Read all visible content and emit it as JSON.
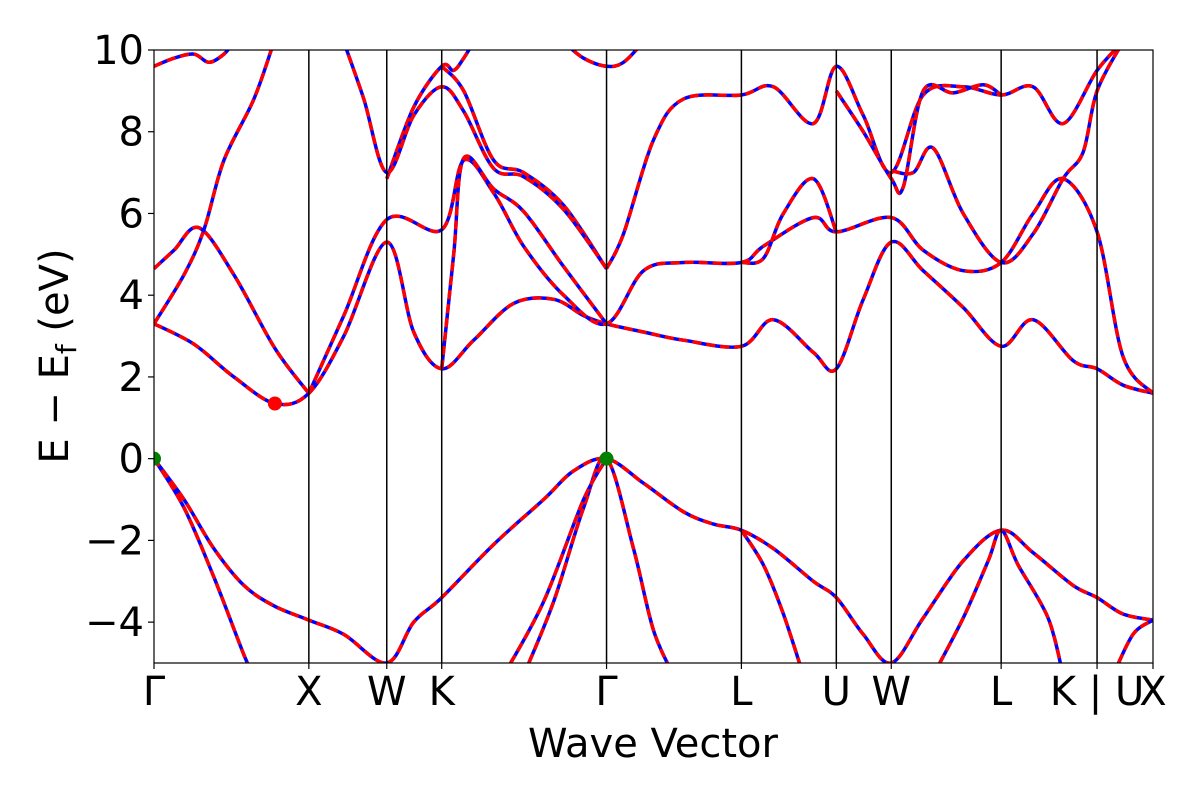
{
  "chart_data": {
    "type": "line",
    "title": "",
    "xlabel": "Wave Vector",
    "ylabel": "E − E_f (eV)",
    "ylabel_main": "E − E",
    "ylabel_sub": "f",
    "ylabel_tail": " (eV)",
    "ylim": [
      -5,
      10
    ],
    "xlim": [
      0,
      1
    ],
    "yticks": [
      -4,
      -2,
      0,
      2,
      4,
      6,
      8,
      10
    ],
    "ytick_labels": [
      "−4",
      "−2",
      "0",
      "2",
      "4",
      "6",
      "8",
      "10"
    ],
    "kpoints": [
      {
        "label": "Γ",
        "x": 0.0
      },
      {
        "label": "X",
        "x": 0.155
      },
      {
        "label": "W",
        "x": 0.233
      },
      {
        "label": "K",
        "x": 0.288
      },
      {
        "label": "Γ",
        "x": 0.453
      },
      {
        "label": "L",
        "x": 0.588
      },
      {
        "label": "U",
        "x": 0.683
      },
      {
        "label": "W",
        "x": 0.738
      },
      {
        "label": "L",
        "x": 0.848
      },
      {
        "label": "K | U",
        "x": 0.944
      },
      {
        "label": "X",
        "x": 1.0
      }
    ],
    "markers": [
      {
        "name": "cbm",
        "x": 0.121,
        "y": 1.35,
        "color": "#ff0000"
      },
      {
        "name": "vbm-gamma-start",
        "x": 0.0,
        "y": 0.0,
        "color": "#008000"
      },
      {
        "name": "vbm-gamma-mid",
        "x": 0.453,
        "y": 0.0,
        "color": "#008000"
      }
    ],
    "colors": {
      "band": "#ff0000",
      "band_overlay": "#0000ff",
      "marker_cbm": "#ff0000",
      "marker_vbm": "#008000"
    },
    "series": [
      {
        "points": [
          [
            0.0,
            0.0
          ],
          [
            0.03,
            -1.0
          ],
          [
            0.06,
            -2.2
          ],
          [
            0.09,
            -3.1
          ],
          [
            0.12,
            -3.6
          ],
          [
            0.155,
            -3.95
          ],
          [
            0.19,
            -4.3
          ],
          [
            0.233,
            -5.0
          ],
          [
            0.26,
            -4.0
          ],
          [
            0.288,
            -3.4
          ],
          [
            0.34,
            -2.1
          ],
          [
            0.39,
            -1.0
          ],
          [
            0.42,
            -0.3
          ],
          [
            0.453,
            0.0
          ],
          [
            0.49,
            -0.6
          ],
          [
            0.53,
            -1.3
          ],
          [
            0.56,
            -1.6
          ],
          [
            0.588,
            -1.75
          ],
          [
            0.62,
            -2.2
          ],
          [
            0.66,
            -3.0
          ],
          [
            0.683,
            -3.4
          ],
          [
            0.71,
            -4.3
          ],
          [
            0.738,
            -5.0
          ],
          [
            0.77,
            -3.9
          ],
          [
            0.81,
            -2.5
          ],
          [
            0.848,
            -1.75
          ],
          [
            0.88,
            -2.3
          ],
          [
            0.92,
            -3.1
          ],
          [
            0.944,
            -3.4
          ],
          [
            0.97,
            -3.8
          ],
          [
            1.0,
            -3.95
          ]
        ]
      },
      {
        "points": [
          [
            0.0,
            0.0
          ],
          [
            0.03,
            -1.2
          ],
          [
            0.06,
            -2.9
          ],
          [
            0.09,
            -4.8
          ],
          [
            0.1,
            -5.3
          ]
        ]
      },
      {
        "points": [
          [
            0.37,
            -5.3
          ],
          [
            0.4,
            -3.5
          ],
          [
            0.43,
            -1.2
          ],
          [
            0.453,
            0.0
          ],
          [
            0.48,
            -2.2
          ],
          [
            0.5,
            -4.2
          ],
          [
            0.52,
            -5.3
          ]
        ]
      },
      {
        "points": [
          [
            0.35,
            -5.3
          ],
          [
            0.39,
            -3.5
          ],
          [
            0.43,
            -1.0
          ],
          [
            0.453,
            0.0
          ]
        ]
      },
      {
        "points": [
          [
            0.588,
            -1.75
          ],
          [
            0.61,
            -2.6
          ],
          [
            0.63,
            -3.8
          ],
          [
            0.65,
            -5.3
          ]
        ]
      },
      {
        "points": [
          [
            0.78,
            -5.3
          ],
          [
            0.81,
            -3.9
          ],
          [
            0.835,
            -2.5
          ],
          [
            0.848,
            -1.75
          ],
          [
            0.865,
            -2.6
          ],
          [
            0.895,
            -3.9
          ],
          [
            0.91,
            -5.3
          ]
        ]
      },
      {
        "points": [
          [
            0.96,
            -5.3
          ],
          [
            0.98,
            -4.3
          ],
          [
            1.0,
            -3.95
          ]
        ]
      },
      {
        "points": [
          [
            0.0,
            3.3
          ],
          [
            0.04,
            2.8
          ],
          [
            0.08,
            2.0
          ],
          [
            0.121,
            1.35
          ],
          [
            0.155,
            1.6
          ],
          [
            0.19,
            3.0
          ],
          [
            0.233,
            5.3
          ],
          [
            0.26,
            3.1
          ],
          [
            0.288,
            2.2
          ],
          [
            0.32,
            2.9
          ],
          [
            0.36,
            3.8
          ],
          [
            0.4,
            3.9
          ],
          [
            0.43,
            3.5
          ],
          [
            0.453,
            3.3
          ],
          [
            0.49,
            3.1
          ],
          [
            0.53,
            2.9
          ],
          [
            0.588,
            2.75
          ],
          [
            0.62,
            3.4
          ],
          [
            0.66,
            2.6
          ],
          [
            0.683,
            2.2
          ],
          [
            0.71,
            3.9
          ],
          [
            0.738,
            5.3
          ],
          [
            0.77,
            4.6
          ],
          [
            0.81,
            3.7
          ],
          [
            0.848,
            2.75
          ],
          [
            0.88,
            3.4
          ],
          [
            0.92,
            2.4
          ],
          [
            0.944,
            2.2
          ],
          [
            0.97,
            1.8
          ],
          [
            1.0,
            1.6
          ]
        ]
      },
      {
        "points": [
          [
            0.0,
            3.3
          ],
          [
            0.03,
            4.5
          ],
          [
            0.05,
            5.6
          ],
          [
            0.07,
            7.3
          ],
          [
            0.1,
            8.8
          ],
          [
            0.12,
            10.2
          ]
        ]
      },
      {
        "points": [
          [
            0.0,
            4.65
          ],
          [
            0.02,
            5.1
          ],
          [
            0.045,
            5.65
          ],
          [
            0.08,
            4.5
          ],
          [
            0.121,
            2.7
          ],
          [
            0.155,
            1.6
          ]
        ]
      },
      {
        "points": [
          [
            0.155,
            1.6
          ],
          [
            0.19,
            3.5
          ],
          [
            0.233,
            5.85
          ],
          [
            0.288,
            5.6
          ],
          [
            0.31,
            7.3
          ],
          [
            0.34,
            6.5
          ],
          [
            0.37,
            5.2
          ],
          [
            0.41,
            4.0
          ],
          [
            0.453,
            3.3
          ],
          [
            0.49,
            4.6
          ],
          [
            0.53,
            4.8
          ],
          [
            0.588,
            4.8
          ],
          [
            0.61,
            5.2
          ],
          [
            0.66,
            5.9
          ],
          [
            0.683,
            5.55
          ],
          [
            0.738,
            5.9
          ],
          [
            0.77,
            5.1
          ],
          [
            0.81,
            4.6
          ],
          [
            0.848,
            4.8
          ],
          [
            0.88,
            6.0
          ],
          [
            0.91,
            6.85
          ],
          [
            0.944,
            5.55
          ],
          [
            0.97,
            2.5
          ],
          [
            1.0,
            1.6
          ]
        ]
      },
      {
        "points": [
          [
            0.288,
            2.2
          ],
          [
            0.3,
            5.0
          ],
          [
            0.31,
            7.35
          ],
          [
            0.34,
            6.6
          ],
          [
            0.37,
            6.05
          ],
          [
            0.41,
            4.7
          ],
          [
            0.453,
            3.3
          ]
        ]
      },
      {
        "points": [
          [
            0.453,
            4.65
          ],
          [
            0.47,
            5.5
          ],
          [
            0.5,
            7.8
          ],
          [
            0.53,
            8.8
          ],
          [
            0.588,
            8.9
          ],
          [
            0.62,
            9.1
          ],
          [
            0.66,
            8.2
          ],
          [
            0.683,
            9.6
          ],
          [
            0.71,
            8.4
          ],
          [
            0.738,
            7.0
          ],
          [
            0.77,
            8.9
          ],
          [
            0.81,
            9.1
          ],
          [
            0.848,
            8.9
          ],
          [
            0.88,
            9.1
          ],
          [
            0.91,
            8.2
          ],
          [
            0.944,
            9.5
          ],
          [
            0.97,
            10.2
          ]
        ]
      },
      {
        "points": [
          [
            0.288,
            9.6
          ],
          [
            0.31,
            9.0
          ],
          [
            0.34,
            7.3
          ],
          [
            0.37,
            7.0
          ],
          [
            0.41,
            6.2
          ],
          [
            0.453,
            4.65
          ]
        ]
      },
      {
        "points": [
          [
            0.588,
            4.8
          ],
          [
            0.61,
            4.9
          ],
          [
            0.63,
            6.0
          ],
          [
            0.66,
            6.85
          ],
          [
            0.683,
            5.55
          ]
        ]
      },
      {
        "points": [
          [
            0.233,
            6.85
          ],
          [
            0.26,
            8.6
          ],
          [
            0.288,
            9.6
          ],
          [
            0.3,
            9.5
          ],
          [
            0.31,
            9.8
          ],
          [
            0.32,
            10.2
          ]
        ]
      },
      {
        "points": [
          [
            0.19,
            10.2
          ],
          [
            0.21,
            8.8
          ],
          [
            0.233,
            7.0
          ],
          [
            0.26,
            8.4
          ],
          [
            0.288,
            9.1
          ],
          [
            0.31,
            8.5
          ],
          [
            0.34,
            7.1
          ],
          [
            0.37,
            6.9
          ],
          [
            0.41,
            6.1
          ],
          [
            0.453,
            4.65
          ]
        ]
      },
      {
        "points": [
          [
            0.738,
            7.05
          ],
          [
            0.76,
            7.0
          ],
          [
            0.78,
            7.6
          ],
          [
            0.81,
            6.0
          ],
          [
            0.848,
            4.8
          ],
          [
            0.88,
            5.5
          ],
          [
            0.91,
            6.85
          ],
          [
            0.93,
            7.5
          ],
          [
            0.944,
            9.0
          ],
          [
            0.97,
            10.2
          ]
        ]
      },
      {
        "points": [
          [
            0.683,
            9.0
          ],
          [
            0.71,
            8.0
          ],
          [
            0.738,
            6.85
          ],
          [
            0.75,
            6.65
          ],
          [
            0.77,
            9.0
          ],
          [
            0.8,
            8.95
          ],
          [
            0.83,
            9.15
          ],
          [
            0.848,
            8.9
          ]
        ]
      },
      {
        "points": [
          [
            0.0,
            9.6
          ],
          [
            0.02,
            9.8
          ],
          [
            0.04,
            9.9
          ],
          [
            0.055,
            9.7
          ],
          [
            0.07,
            9.9
          ],
          [
            0.08,
            10.2
          ]
        ]
      },
      {
        "points": [
          [
            0.41,
            10.2
          ],
          [
            0.43,
            9.8
          ],
          [
            0.453,
            9.6
          ],
          [
            0.47,
            9.7
          ],
          [
            0.49,
            10.2
          ]
        ]
      }
    ]
  }
}
